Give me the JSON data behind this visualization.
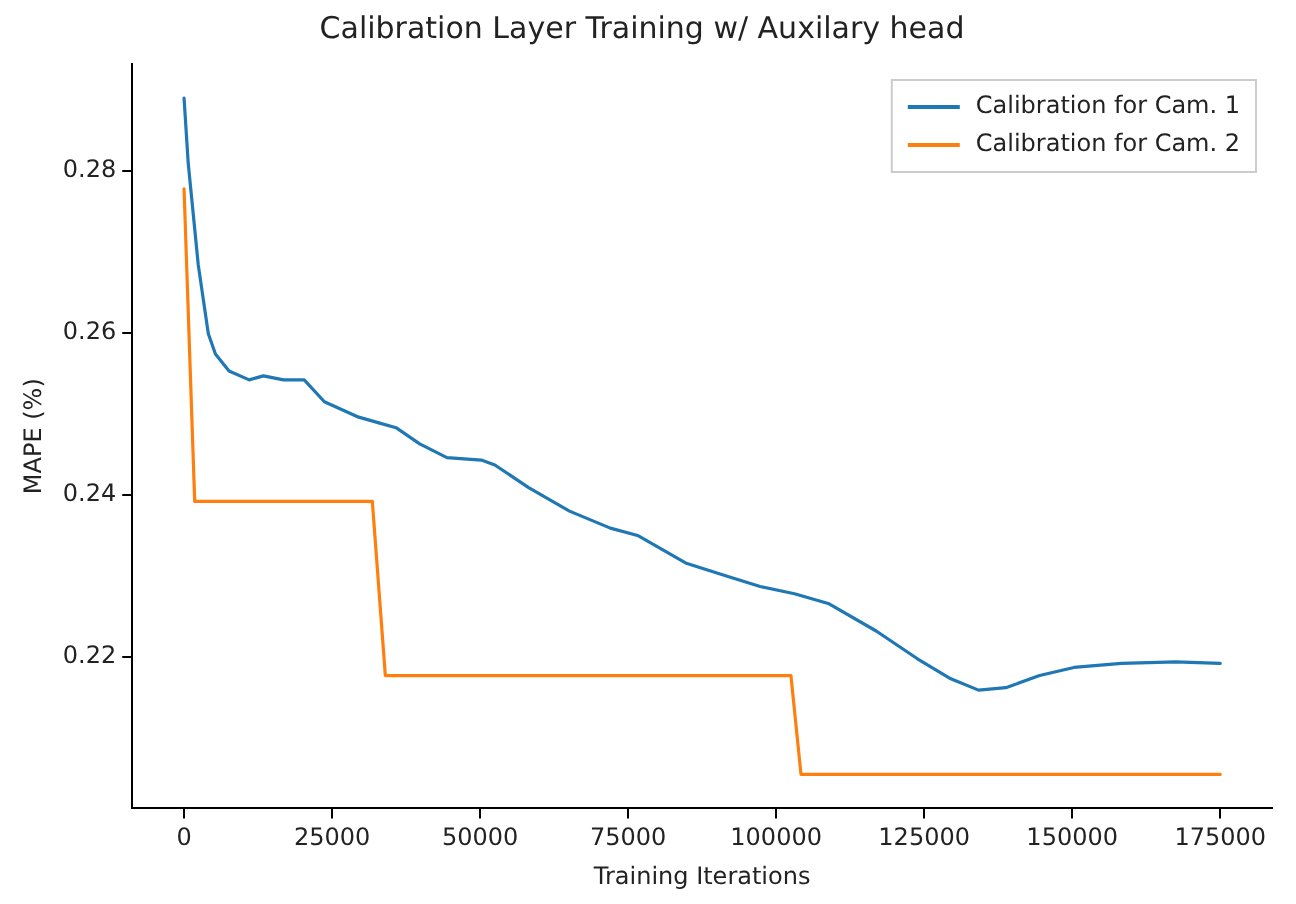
{
  "chart_data": {
    "type": "line",
    "title": "Calibration Layer Training w/ Auxilary head",
    "xlabel": "Training Iterations",
    "ylabel": "MAPE (%)",
    "xlim": [
      -8750,
      183750
    ],
    "xticks": [
      0,
      25000,
      50000,
      75000,
      100000,
      125000,
      150000,
      175000
    ],
    "ylim": [
      0.2013,
      0.2932
    ],
    "yticks": [
      0.22,
      0.24,
      0.26,
      0.28
    ],
    "grid": false,
    "legend": "top right",
    "series": [
      {
        "name": "Calibration for Cam. 1",
        "color": "#1f77b4",
        "x": [
          0,
          700,
          2400,
          4100,
          5300,
          7600,
          11000,
          13400,
          16800,
          20300,
          23700,
          29500,
          32900,
          35800,
          39800,
          44400,
          50200,
          52500,
          58200,
          65100,
          72000,
          76600,
          84700,
          91600,
          97300,
          103100,
          108800,
          116900,
          123800,
          129500,
          134200,
          138800,
          144500,
          150300,
          158300,
          167500,
          175000
        ],
        "values": [
          0.289,
          0.281,
          0.2684,
          0.2599,
          0.2574,
          0.2553,
          0.2542,
          0.2547,
          0.2542,
          0.2542,
          0.2515,
          0.2496,
          0.2489,
          0.2483,
          0.2463,
          0.2446,
          0.2443,
          0.2437,
          0.2409,
          0.238,
          0.2359,
          0.235,
          0.2316,
          0.23,
          0.2287,
          0.2278,
          0.2266,
          0.2232,
          0.2198,
          0.2173,
          0.2159,
          0.2162,
          0.2177,
          0.2187,
          0.2192,
          0.2194,
          0.2192
        ]
      },
      {
        "name": "Calibration for Cam. 2",
        "color": "#ff7f0e",
        "x": [
          0,
          1800,
          31800,
          34000,
          102500,
          104200,
          175000
        ],
        "values": [
          0.2778,
          0.2392,
          0.2392,
          0.2177,
          0.2177,
          0.2055,
          0.2055
        ]
      }
    ]
  }
}
